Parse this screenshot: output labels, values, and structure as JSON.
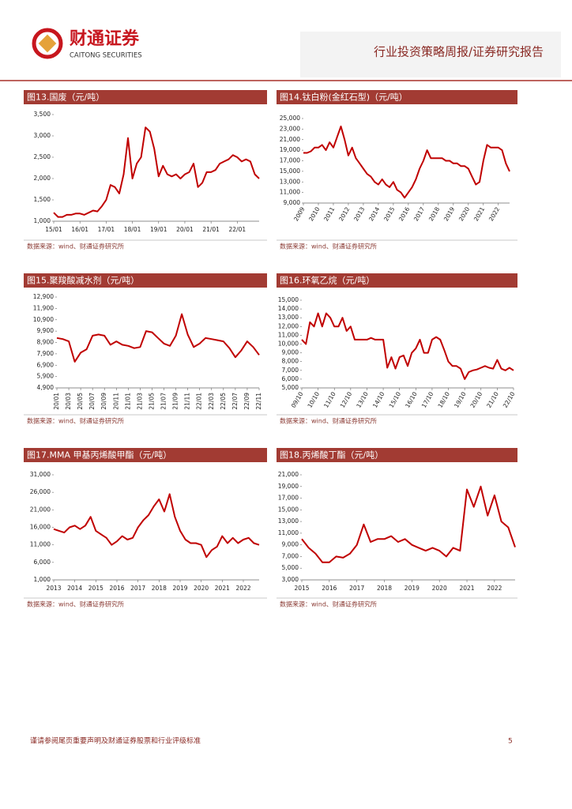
{
  "header": {
    "logo_cn": "财通证券",
    "logo_en": "CAITONG SECURITIES",
    "doc_type": "行业投资策略周报/证券研究报告"
  },
  "footer": {
    "disclaimer": "谨请参阅尾页重要声明及财通证券股票和行业评级标准",
    "page": "5"
  },
  "chart_data": [
    {
      "type": "line",
      "title": "图13.国废（元/吨）",
      "source": "数据来源：wind、财通证券研究所",
      "categories": [
        "15/01",
        null,
        null,
        null,
        null,
        null,
        "16/01",
        null,
        null,
        null,
        null,
        null,
        "17/01",
        null,
        null,
        null,
        null,
        null,
        "18/01",
        null,
        null,
        null,
        null,
        null,
        "19/01",
        null,
        null,
        null,
        null,
        null,
        "20/01",
        null,
        null,
        null,
        null,
        null,
        "21/01",
        null,
        null,
        null,
        null,
        null,
        "22/01",
        null,
        null,
        null,
        null,
        null
      ],
      "series": [
        {
          "color": "#c00000",
          "values": [
            1200,
            1100,
            1100,
            1150,
            1150,
            1180,
            1180,
            1150,
            1200,
            1250,
            1230,
            1350,
            1500,
            1850,
            1800,
            1650,
            2100,
            2950,
            2000,
            2350,
            2500,
            3200,
            3100,
            2700,
            2050,
            2300,
            2100,
            2050,
            2100,
            2000,
            2100,
            2150,
            2350,
            1800,
            1900,
            2150,
            2150,
            2200,
            2350,
            2400,
            2450,
            2550,
            2500,
            2400,
            2450,
            2400,
            2100,
            2000
          ]
        }
      ],
      "ylim": [
        1000,
        3500
      ],
      "yticks": [
        {
          "value": 1000,
          "label": "1,000"
        },
        {
          "value": 1500,
          "label": "1,500"
        },
        {
          "value": 2000,
          "label": "2,000"
        },
        {
          "value": 2500,
          "label": "2,500"
        },
        {
          "value": 3000,
          "label": "3,000"
        },
        {
          "value": 3500,
          "label": "3,500"
        }
      ]
    },
    {
      "type": "line",
      "title": "图14.钛白粉(金红石型)（元/吨）",
      "source": "数据来源：wind、财通证券研究所",
      "categories": [
        "2009",
        null,
        null,
        null,
        "2010",
        null,
        null,
        null,
        "2011",
        null,
        null,
        null,
        "2012",
        null,
        null,
        null,
        "2013",
        null,
        null,
        null,
        "2014",
        null,
        null,
        null,
        "2015",
        null,
        null,
        null,
        "2016",
        null,
        null,
        null,
        "2017",
        null,
        null,
        null,
        "2018",
        null,
        null,
        null,
        "2019",
        null,
        null,
        null,
        "2020",
        null,
        null,
        null,
        "2021",
        null,
        null,
        null,
        "2022",
        null,
        null,
        null
      ],
      "series": [
        {
          "color": "#c00000",
          "values": [
            18500,
            18500,
            18800,
            19500,
            19500,
            20000,
            19000,
            20500,
            19500,
            21500,
            23500,
            21000,
            18000,
            19500,
            17500,
            16500,
            15500,
            14500,
            14000,
            13000,
            12500,
            13500,
            12500,
            12000,
            13000,
            11500,
            11000,
            10000,
            11000,
            12000,
            13500,
            15500,
            17000,
            19000,
            17500,
            17500,
            17500,
            17500,
            17000,
            17000,
            16500,
            16500,
            16000,
            16000,
            15500,
            14000,
            12500,
            13000,
            17000,
            20000,
            19500,
            19500,
            19500,
            19000,
            16500,
            15000
          ]
        }
      ],
      "ylim": [
        9000,
        25000
      ],
      "yticks": [
        {
          "value": 9000,
          "label": "9,000"
        },
        {
          "value": 11000,
          "label": "11,000"
        },
        {
          "value": 13000,
          "label": "13,000"
        },
        {
          "value": 15000,
          "label": "15,000"
        },
        {
          "value": 17000,
          "label": "17,000"
        },
        {
          "value": 19000,
          "label": "19,000"
        },
        {
          "value": 21000,
          "label": "21,000"
        },
        {
          "value": 23000,
          "label": "23,000"
        },
        {
          "value": 25000,
          "label": "25,000"
        }
      ]
    },
    {
      "type": "line",
      "title": "图15.聚羧酸减水剂（元/吨）",
      "source": "数据来源：wind、财通证券研究所",
      "categories": [
        "20/01",
        null,
        "20/03",
        null,
        "20/05",
        null,
        "20/07",
        null,
        "20/09",
        null,
        "20/11",
        null,
        "21/01",
        null,
        "21/03",
        null,
        "21/05",
        null,
        "21/07",
        null,
        "21/09",
        null,
        "21/11",
        null,
        "22/01",
        null,
        "22/03",
        null,
        "22/05",
        null,
        "22/07",
        null,
        "22/09",
        null,
        "22/11"
      ],
      "series": [
        {
          "color": "#c00000",
          "values": [
            9300,
            9200,
            9000,
            7200,
            8000,
            8300,
            9500,
            9600,
            9500,
            8700,
            9000,
            8700,
            8600,
            8400,
            8500,
            9900,
            9800,
            9300,
            8800,
            8600,
            9500,
            11400,
            9600,
            8500,
            8800,
            9300,
            9200,
            9100,
            9000,
            8400,
            7600,
            8200,
            9000,
            8500,
            7800
          ]
        }
      ],
      "ylim": [
        4900,
        12900
      ],
      "yticks": [
        {
          "value": 4900,
          "label": "4,900"
        },
        {
          "value": 5900,
          "label": "5,900"
        },
        {
          "value": 6900,
          "label": "6,900"
        },
        {
          "value": 7900,
          "label": "7,900"
        },
        {
          "value": 8900,
          "label": "8,900"
        },
        {
          "value": 9900,
          "label": "9,900"
        },
        {
          "value": 10900,
          "label": "10,900"
        },
        {
          "value": 11900,
          "label": "11,900"
        },
        {
          "value": 12900,
          "label": "12,900"
        }
      ]
    },
    {
      "type": "line",
      "title": "图16.环氧乙烷（元/吨）",
      "source": "数据来源：wind、财通证券研究所",
      "categories": [
        "09/10",
        null,
        null,
        null,
        "10/10",
        null,
        null,
        null,
        "11/10",
        null,
        null,
        null,
        "12/10",
        null,
        null,
        null,
        "13/10",
        null,
        null,
        null,
        "14/10",
        null,
        null,
        null,
        "15/10",
        null,
        null,
        null,
        "16/10",
        null,
        null,
        null,
        "17/10",
        null,
        null,
        null,
        "18/10",
        null,
        null,
        null,
        "19/10",
        null,
        null,
        null,
        "20/10",
        null,
        null,
        null,
        "21/10",
        null,
        null,
        null,
        "22/10"
      ],
      "series": [
        {
          "color": "#c00000",
          "values": [
            10500,
            10000,
            12500,
            12000,
            13500,
            12000,
            13500,
            13000,
            12000,
            12000,
            13000,
            11500,
            12000,
            10500,
            10500,
            10500,
            10500,
            10700,
            10500,
            10500,
            10500,
            7300,
            8500,
            7200,
            8500,
            8700,
            7500,
            9000,
            9500,
            10500,
            9000,
            9000,
            10500,
            10800,
            10500,
            9300,
            8000,
            7500,
            7500,
            7200,
            6000,
            6800,
            7000,
            7100,
            7300,
            7500,
            7300,
            7200,
            8200,
            7200,
            7000,
            7300,
            7000
          ]
        }
      ],
      "ylim": [
        5000,
        15000
      ],
      "yticks": [
        {
          "value": 5000,
          "label": "5,000"
        },
        {
          "value": 6000,
          "label": "6,000"
        },
        {
          "value": 7000,
          "label": "7,000"
        },
        {
          "value": 8000,
          "label": "8,000"
        },
        {
          "value": 9000,
          "label": "9,000"
        },
        {
          "value": 10000,
          "label": "10,000"
        },
        {
          "value": 11000,
          "label": "11,000"
        },
        {
          "value": 12000,
          "label": "12,000"
        },
        {
          "value": 13000,
          "label": "13,000"
        },
        {
          "value": 14000,
          "label": "14,000"
        },
        {
          "value": 15000,
          "label": "15,000"
        }
      ]
    },
    {
      "type": "line",
      "title": "图17.MMA 甲基丙烯酸甲酯（元/吨）",
      "source": "数据来源：wind、财通证券研究所",
      "categories": [
        "2013",
        null,
        null,
        null,
        "2014",
        null,
        null,
        null,
        "2015",
        null,
        null,
        null,
        "2016",
        null,
        null,
        null,
        "2017",
        null,
        null,
        null,
        "2018",
        null,
        null,
        null,
        "2019",
        null,
        null,
        null,
        "2020",
        null,
        null,
        null,
        "2021",
        null,
        null,
        null,
        "2022",
        null,
        null,
        null
      ],
      "series": [
        {
          "color": "#c00000",
          "values": [
            15500,
            15000,
            14500,
            16000,
            16500,
            15500,
            16500,
            19000,
            15000,
            14000,
            13000,
            11000,
            12000,
            13500,
            12500,
            13000,
            16000,
            18000,
            19500,
            22000,
            24000,
            20500,
            25500,
            19000,
            15000,
            12500,
            11500,
            11500,
            11000,
            7500,
            9500,
            10500,
            13500,
            11500,
            13000,
            11500,
            12500,
            13000,
            11500,
            11000
          ]
        }
      ],
      "ylim": [
        1000,
        31000
      ],
      "yticks": [
        {
          "value": 1000,
          "label": "1,000"
        },
        {
          "value": 6000,
          "label": "6,000"
        },
        {
          "value": 11000,
          "label": "11,000"
        },
        {
          "value": 16000,
          "label": "16,000"
        },
        {
          "value": 21000,
          "label": "21,000"
        },
        {
          "value": 26000,
          "label": "26,000"
        },
        {
          "value": 31000,
          "label": "31,000"
        }
      ]
    },
    {
      "type": "line",
      "title": "图18.丙烯酸丁酯（元/吨）",
      "source": "数据来源：wind、财通证券研究所",
      "categories": [
        "2015",
        null,
        null,
        null,
        "2016",
        null,
        null,
        null,
        "2017",
        null,
        null,
        null,
        "2018",
        null,
        null,
        null,
        "2019",
        null,
        null,
        null,
        "2020",
        null,
        null,
        null,
        "2021",
        null,
        null,
        null,
        "2022",
        null,
        null,
        null
      ],
      "series": [
        {
          "color": "#c00000",
          "values": [
            10000,
            8500,
            7500,
            6000,
            6000,
            7000,
            6800,
            7500,
            9000,
            12500,
            9500,
            10000,
            10000,
            10500,
            9500,
            10000,
            9000,
            8500,
            8000,
            8500,
            8000,
            7000,
            8500,
            8000,
            18500,
            15500,
            19000,
            14000,
            17500,
            13000,
            12000,
            8600
          ]
        }
      ],
      "ylim": [
        3000,
        21000
      ],
      "yticks": [
        {
          "value": 3000,
          "label": "3,000"
        },
        {
          "value": 5000,
          "label": "5,000"
        },
        {
          "value": 7000,
          "label": "7,000"
        },
        {
          "value": 9000,
          "label": "9,000"
        },
        {
          "value": 11000,
          "label": "11,000"
        },
        {
          "value": 13000,
          "label": "13,000"
        },
        {
          "value": 15000,
          "label": "15,000"
        },
        {
          "value": 17000,
          "label": "17,000"
        },
        {
          "value": 19000,
          "label": "19,000"
        },
        {
          "value": 21000,
          "label": "21,000"
        }
      ]
    }
  ]
}
